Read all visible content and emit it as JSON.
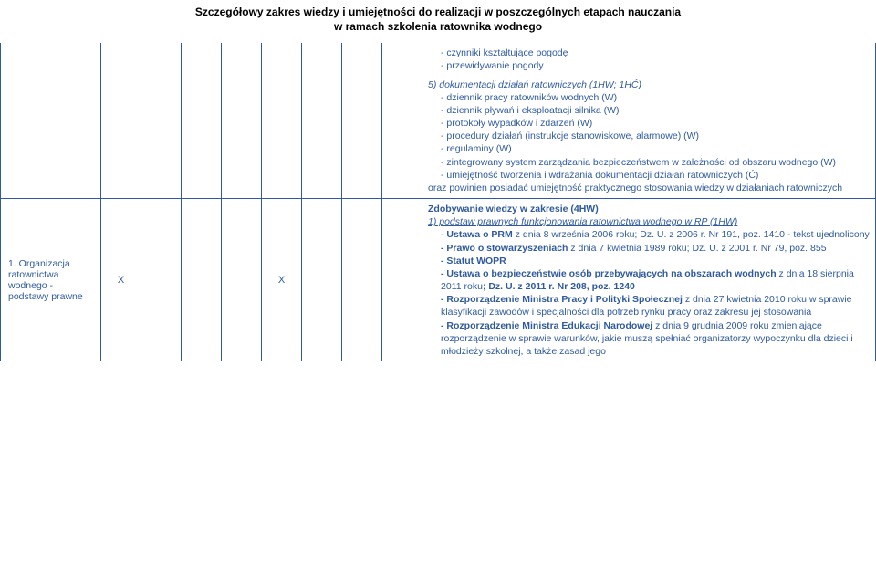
{
  "header": {
    "line1": "Szczegółowy zakres wiedzy i umiejętności do realizacji w poszczególnych etapach nauczania",
    "line2": "w ramach szkolenia ratownika wodnego"
  },
  "top_block": {
    "c1": "- czynniki kształtujące pogodę",
    "c2": "- przewidywanie pogody"
  },
  "row_label": "1. Organizacja ratownictwa wodnego - podstawy prawne",
  "xmark": "X",
  "sec5": {
    "head": "5)  dokumentacji działań ratowniczych (1HW; 1HĆ)",
    "l1": "- dziennik pracy ratowników wodnych (W)",
    "l2": "- dziennik pływań i eksploatacji silnika (W)",
    "l3": "- protokoły wypadków i zdarzeń (W)",
    "l4": "- procedury działań (instrukcje stanowiskowe, alarmowe) (W)",
    "l5": "- regulaminy (W)",
    "l6": "- zintegrowany system zarządzania bezpieczeństwem w zależności od obszaru wodnego (W)",
    "l7": "- umiejętność tworzenia i wdrażania dokumentacji działań ratowniczych (Ć)",
    "t1": "oraz powinien posiadać umiejętność praktycznego stosowania wiedzy w działaniach ratowniczych"
  },
  "z": {
    "head": "Zdobywanie wiedzy w zakresie (4HW)",
    "p1": "1)  podstaw prawnych funkcjonowania ratownictwa wodnego w RP (1HW)",
    "u1a": "- Ustawa o PRM",
    "u1b": " z dnia 8 września 2006 roku; Dz. U. z 2006 r. Nr 191, poz. 1410 - tekst ujednolicony",
    "u2a": "- Prawo o stowarzyszeniach",
    "u2b": " z dnia 7 kwietnia 1989 roku; Dz. U. z 2001 r. Nr 79, poz. 855",
    "u3": "- Statut WOPR",
    "u4a": "- Ustawa o bezpieczeństwie osób przebywających na obszarach wodnych",
    "u4b": " z dnia 18 sierpnia 2011 roku",
    "u4c": "; Dz. U. z 2011 r. Nr 208, poz. 1240",
    "u5a": "- Rozporządzenie Ministra Pracy i Polityki Społecznej",
    "u5b": " z dnia 27 kwietnia 2010 roku w sprawie klasyfikacji zawodów i specjalności dla potrzeb rynku pracy oraz zakresu jej stosowania",
    "u6a": "- Rozporządzenie Ministra Edukacji Narodowej",
    "u6b": " z dnia 9 grudnia 2009 roku zmieniające rozporządzenie w sprawie warunków, jakie muszą spełniać organizatorzy wypoczynku dla dzieci i młodzieży szkolnej, a także zasad jego"
  },
  "colors": {
    "text": "#2f5a9f",
    "border": "#2f5a9f",
    "bg": "#ffffff"
  }
}
